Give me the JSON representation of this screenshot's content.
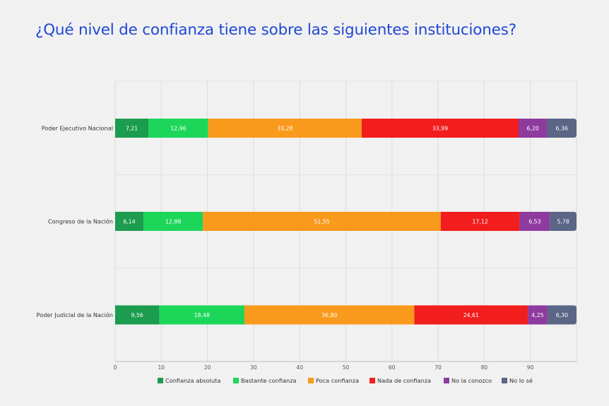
{
  "chart_data": {
    "type": "bar",
    "orientation": "horizontal",
    "stacked": true,
    "title": "¿Qué nivel de confianza tiene sobre las siguientes instituciones?",
    "categories": [
      "Poder Ejecutivo Nacional",
      "Congreso de la Nación",
      "Poder Judicial de la Nación"
    ],
    "series": [
      {
        "name": "Confianza absoluta",
        "color": "#1b9c4e",
        "values": [
          7.21,
          6.14,
          9.56
        ],
        "labels": [
          "7,21",
          "6,14",
          "9,56"
        ]
      },
      {
        "name": "Bastante confianza",
        "color": "#1cd65a",
        "values": [
          12.96,
          12.88,
          18.48
        ],
        "labels": [
          "12,96",
          "12,88",
          "18,48"
        ]
      },
      {
        "name": "Poca confianza",
        "color": "#f99a1c",
        "values": [
          33.28,
          51.55,
          36.8
        ],
        "labels": [
          "33,28",
          "51,55",
          "36,80"
        ]
      },
      {
        "name": "Nada de confianza",
        "color": "#f21d1d",
        "values": [
          33.99,
          17.12,
          24.61
        ],
        "labels": [
          "33,99",
          "17,12",
          "24,61"
        ]
      },
      {
        "name": "No la conozco",
        "color": "#8e3a9f",
        "values": [
          6.2,
          6.53,
          4.25
        ],
        "labels": [
          "6,20",
          "6,53",
          "4,25"
        ]
      },
      {
        "name": "No lo sé",
        "color": "#5b6585",
        "values": [
          6.36,
          5.78,
          6.3
        ],
        "labels": [
          "6,36",
          "5,78",
          "6,30"
        ]
      }
    ],
    "xlim": [
      0,
      100
    ],
    "xticks": [
      0,
      10,
      20,
      30,
      40,
      50,
      60,
      70,
      80,
      90
    ],
    "grid": true,
    "legend_position": "bottom"
  }
}
